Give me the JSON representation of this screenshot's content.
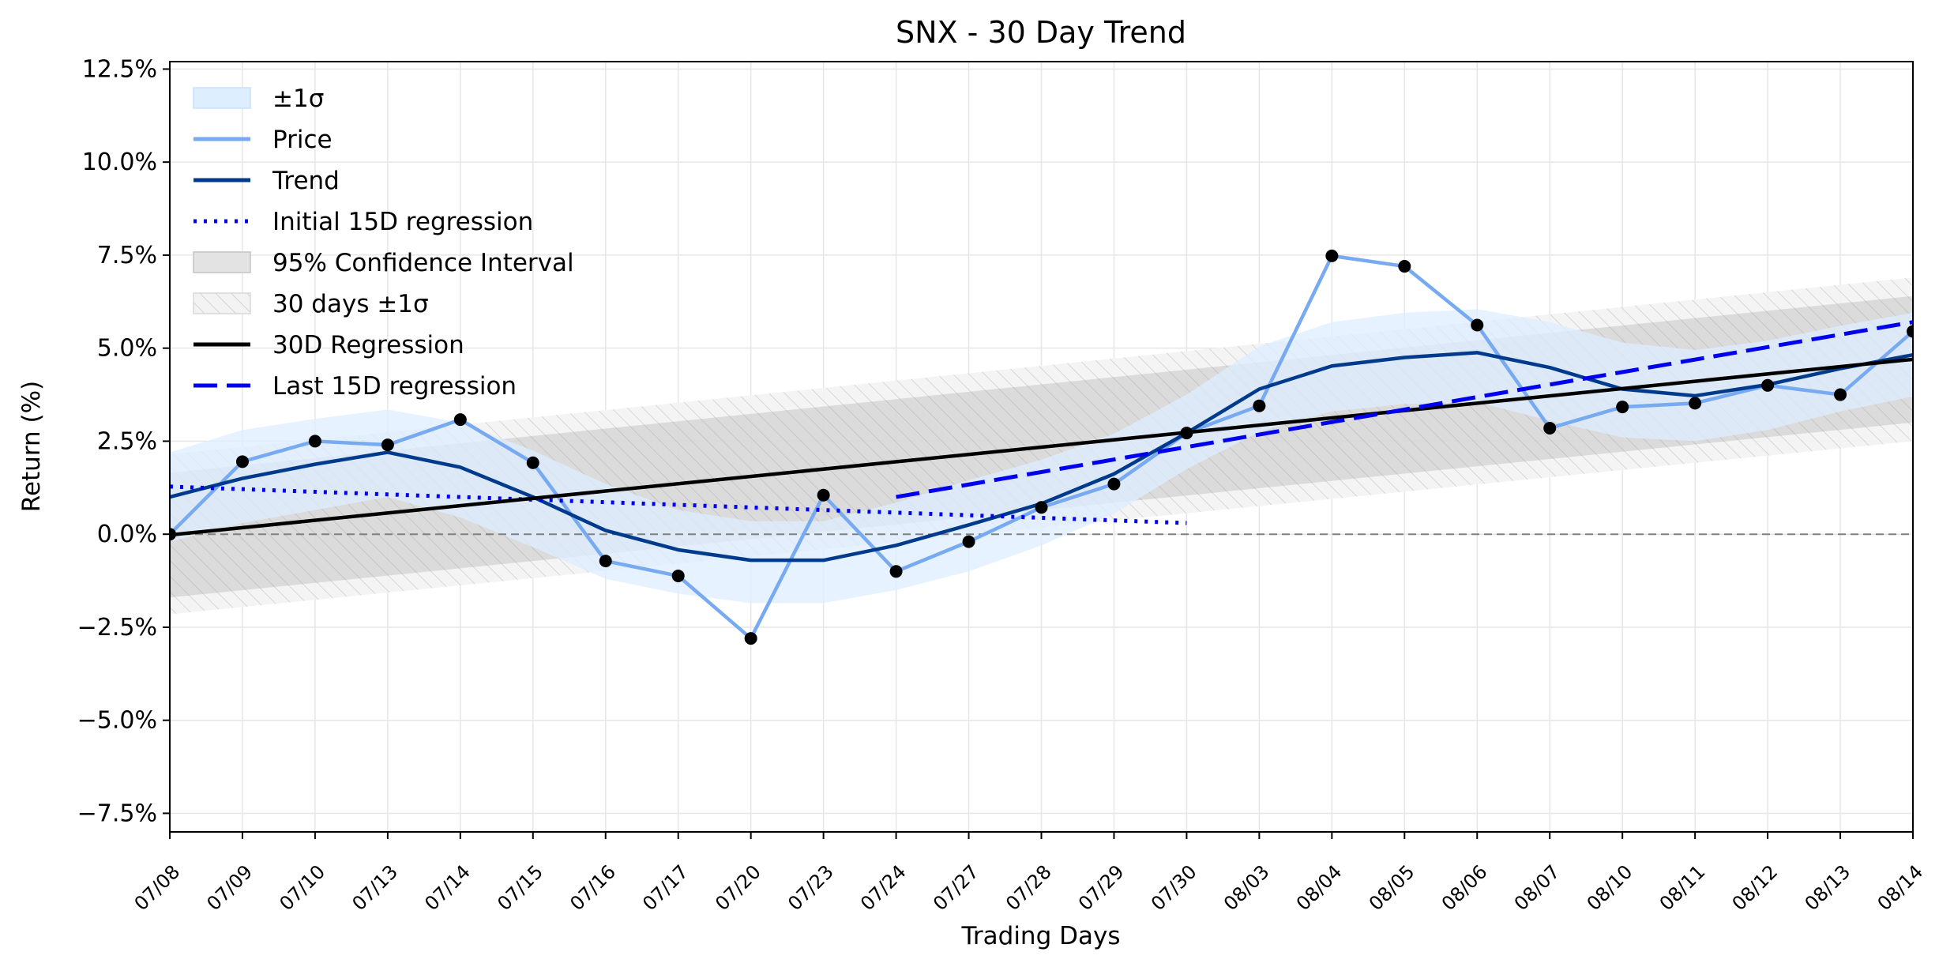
{
  "chart_data": {
    "type": "line",
    "title": "SNX - 30 Day Trend",
    "xlabel": "Trading Days",
    "ylabel": "Return (%)",
    "ylim": [
      -8.0,
      12.7
    ],
    "y_ticks": [
      -7.5,
      -5.0,
      -2.5,
      0.0,
      2.5,
      5.0,
      7.5,
      10.0,
      12.5
    ],
    "y_tick_labels": [
      "−7.5%",
      "−5.0%",
      "−2.5%",
      "0.0%",
      "2.5%",
      "5.0%",
      "7.5%",
      "10.0%",
      "12.5%"
    ],
    "grid": true,
    "legend_position": "upper-left",
    "categories": [
      "07/08",
      "07/09",
      "07/10",
      "07/13",
      "07/14",
      "07/15",
      "07/16",
      "07/17",
      "07/20",
      "07/23",
      "07/24",
      "07/27",
      "07/28",
      "07/29",
      "07/30",
      "08/03",
      "08/04",
      "08/05",
      "08/06",
      "08/07",
      "08/10",
      "08/11",
      "08/12",
      "08/13",
      "08/14"
    ],
    "series": [
      {
        "name": "Price",
        "color": "#77aaf0",
        "values": [
          0.0,
          1.95,
          2.5,
          2.4,
          3.08,
          1.92,
          -0.72,
          -1.12,
          -2.8,
          1.05,
          -1.0,
          -0.2,
          0.72,
          1.35,
          2.72,
          3.45,
          7.48,
          7.2,
          5.62,
          2.85,
          3.42,
          3.52,
          4.0,
          3.75,
          5.45
        ]
      },
      {
        "name": "Trend",
        "color": "#003a8c",
        "values": [
          1.0,
          1.5,
          1.88,
          2.2,
          1.8,
          1.0,
          0.1,
          -0.42,
          -0.7,
          -0.7,
          -0.3,
          0.25,
          0.82,
          1.62,
          2.72,
          3.9,
          4.52,
          4.75,
          4.88,
          4.48,
          3.9,
          3.72,
          4.02,
          4.45,
          4.82
        ]
      },
      {
        "name": "Initial 15D regression",
        "color": "#0000ee",
        "line_style": "dotted",
        "x_range": [
          "07/08",
          "07/30"
        ],
        "y_range": [
          1.28,
          0.3
        ]
      },
      {
        "name": "30D Regression",
        "color": "#000000",
        "x_range": [
          "07/08",
          "08/14"
        ],
        "y_range": [
          -0.02,
          4.7
        ]
      },
      {
        "name": "Last 15D regression",
        "color": "#0000ee",
        "line_style": "dashed",
        "x_range": [
          "07/24",
          "08/14"
        ],
        "y_range": [
          1.0,
          5.7
        ]
      }
    ],
    "bands": [
      {
        "name": "±1σ",
        "color": "#ddeeff",
        "lower": [
          -0.2,
          0.3,
          0.65,
          1.0,
          0.45,
          -0.35,
          -1.2,
          -1.6,
          -1.85,
          -1.85,
          -1.5,
          -1.0,
          -0.3,
          0.55,
          1.75,
          2.75,
          3.3,
          3.5,
          3.55,
          3.05,
          2.6,
          2.5,
          2.8,
          3.3,
          3.7
        ],
        "upper": [
          2.2,
          2.8,
          3.1,
          3.35,
          3.0,
          2.25,
          1.35,
          0.65,
          0.35,
          0.35,
          0.85,
          1.45,
          2.0,
          2.7,
          3.75,
          5.05,
          5.7,
          5.95,
          6.05,
          5.7,
          5.15,
          4.95,
          5.2,
          5.6,
          5.95
        ]
      },
      {
        "name": "95% Confidence Interval",
        "color": "#999999",
        "x_range": [
          "07/08",
          "08/14"
        ],
        "lower": [
          -1.7,
          3.0
        ],
        "upper": [
          1.65,
          6.4
        ]
      },
      {
        "name": "30 days ±1σ",
        "color": "#cccccc",
        "hatched": true,
        "x_range": [
          "07/08",
          "08/14"
        ],
        "lower": [
          -2.15,
          2.5
        ],
        "upper": [
          2.15,
          6.9
        ]
      }
    ],
    "reference_line": {
      "y": 0.0,
      "color": "#808080",
      "line_style": "dashed"
    },
    "markers": {
      "color": "#000000",
      "on_series": "Price"
    }
  }
}
